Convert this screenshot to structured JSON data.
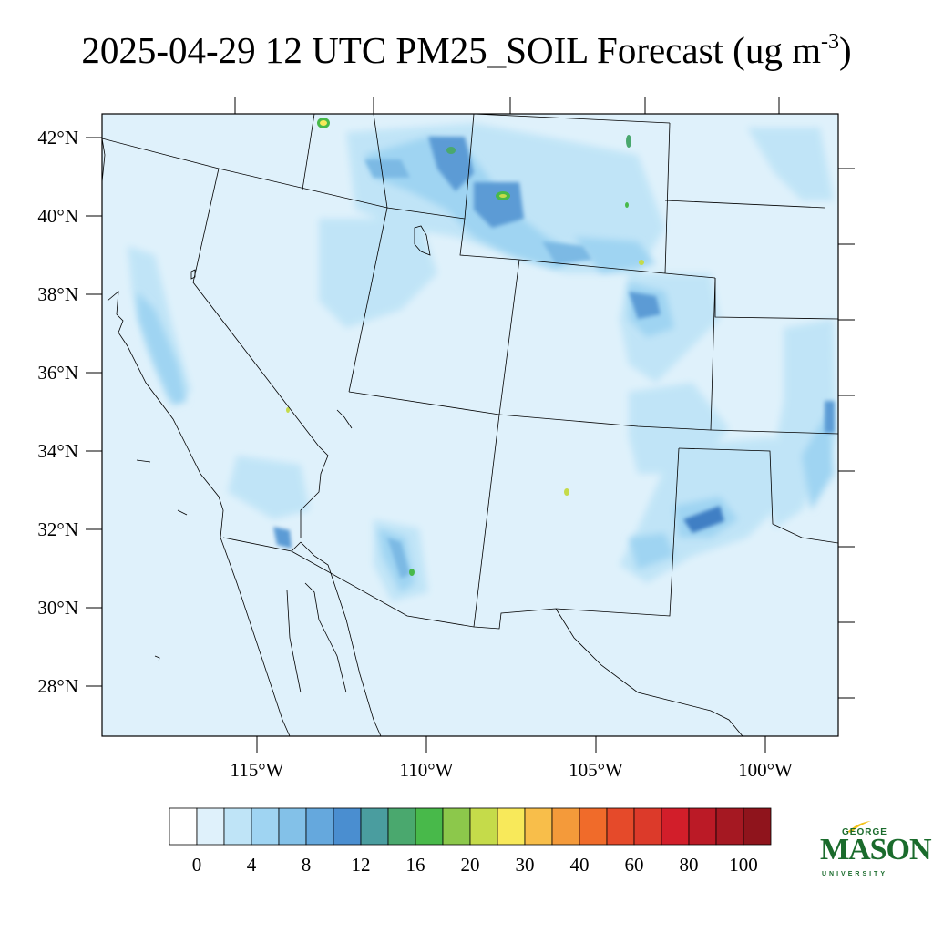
{
  "title": {
    "main": "2025-04-29 12 UTC PM25_SOIL Forecast (ug m",
    "exponent": "-3",
    "close": ")"
  },
  "map": {
    "lat_labels": [
      "42°N",
      "40°N",
      "38°N",
      "36°N",
      "34°N",
      "32°N",
      "30°N",
      "28°N"
    ],
    "lon_labels": [
      "115°W",
      "110°W",
      "105°W",
      "100°W"
    ],
    "extent": {
      "lat_range": [
        26.8,
        42.6
      ],
      "lon_range": [
        -119.5,
        -98.0
      ]
    },
    "colors": {
      "background_field": "#dff1fb",
      "light": "#bfe4f7",
      "medium": "#9fd4f2",
      "blue": "#7cb9e4",
      "dark_blue": "#5b9bd5",
      "deep_blue": "#3f7fc4",
      "green": "#48b94a",
      "yellow_green": "#c5db4a",
      "border": "#000000"
    }
  },
  "colorbar": {
    "labels": [
      "0",
      "4",
      "8",
      "12",
      "16",
      "20",
      "30",
      "40",
      "60",
      "80",
      "100"
    ],
    "colors": [
      "#ffffff",
      "#dff1fb",
      "#bfe4f7",
      "#9fd4f2",
      "#83c1e8",
      "#65a8dd",
      "#4a8ed0",
      "#4a9d9f",
      "#4aa86e",
      "#48b94a",
      "#8cc84b",
      "#c5db4a",
      "#f8e95a",
      "#f8be4a",
      "#f49a3a",
      "#f06b2a",
      "#e54a2a",
      "#dc3a2a",
      "#d21e2a",
      "#bb1a26",
      "#a51822",
      "#8f141c"
    ]
  },
  "logo": {
    "george": "GEORGE",
    "mason": "MASON",
    "university": "UNIVERSITY"
  }
}
